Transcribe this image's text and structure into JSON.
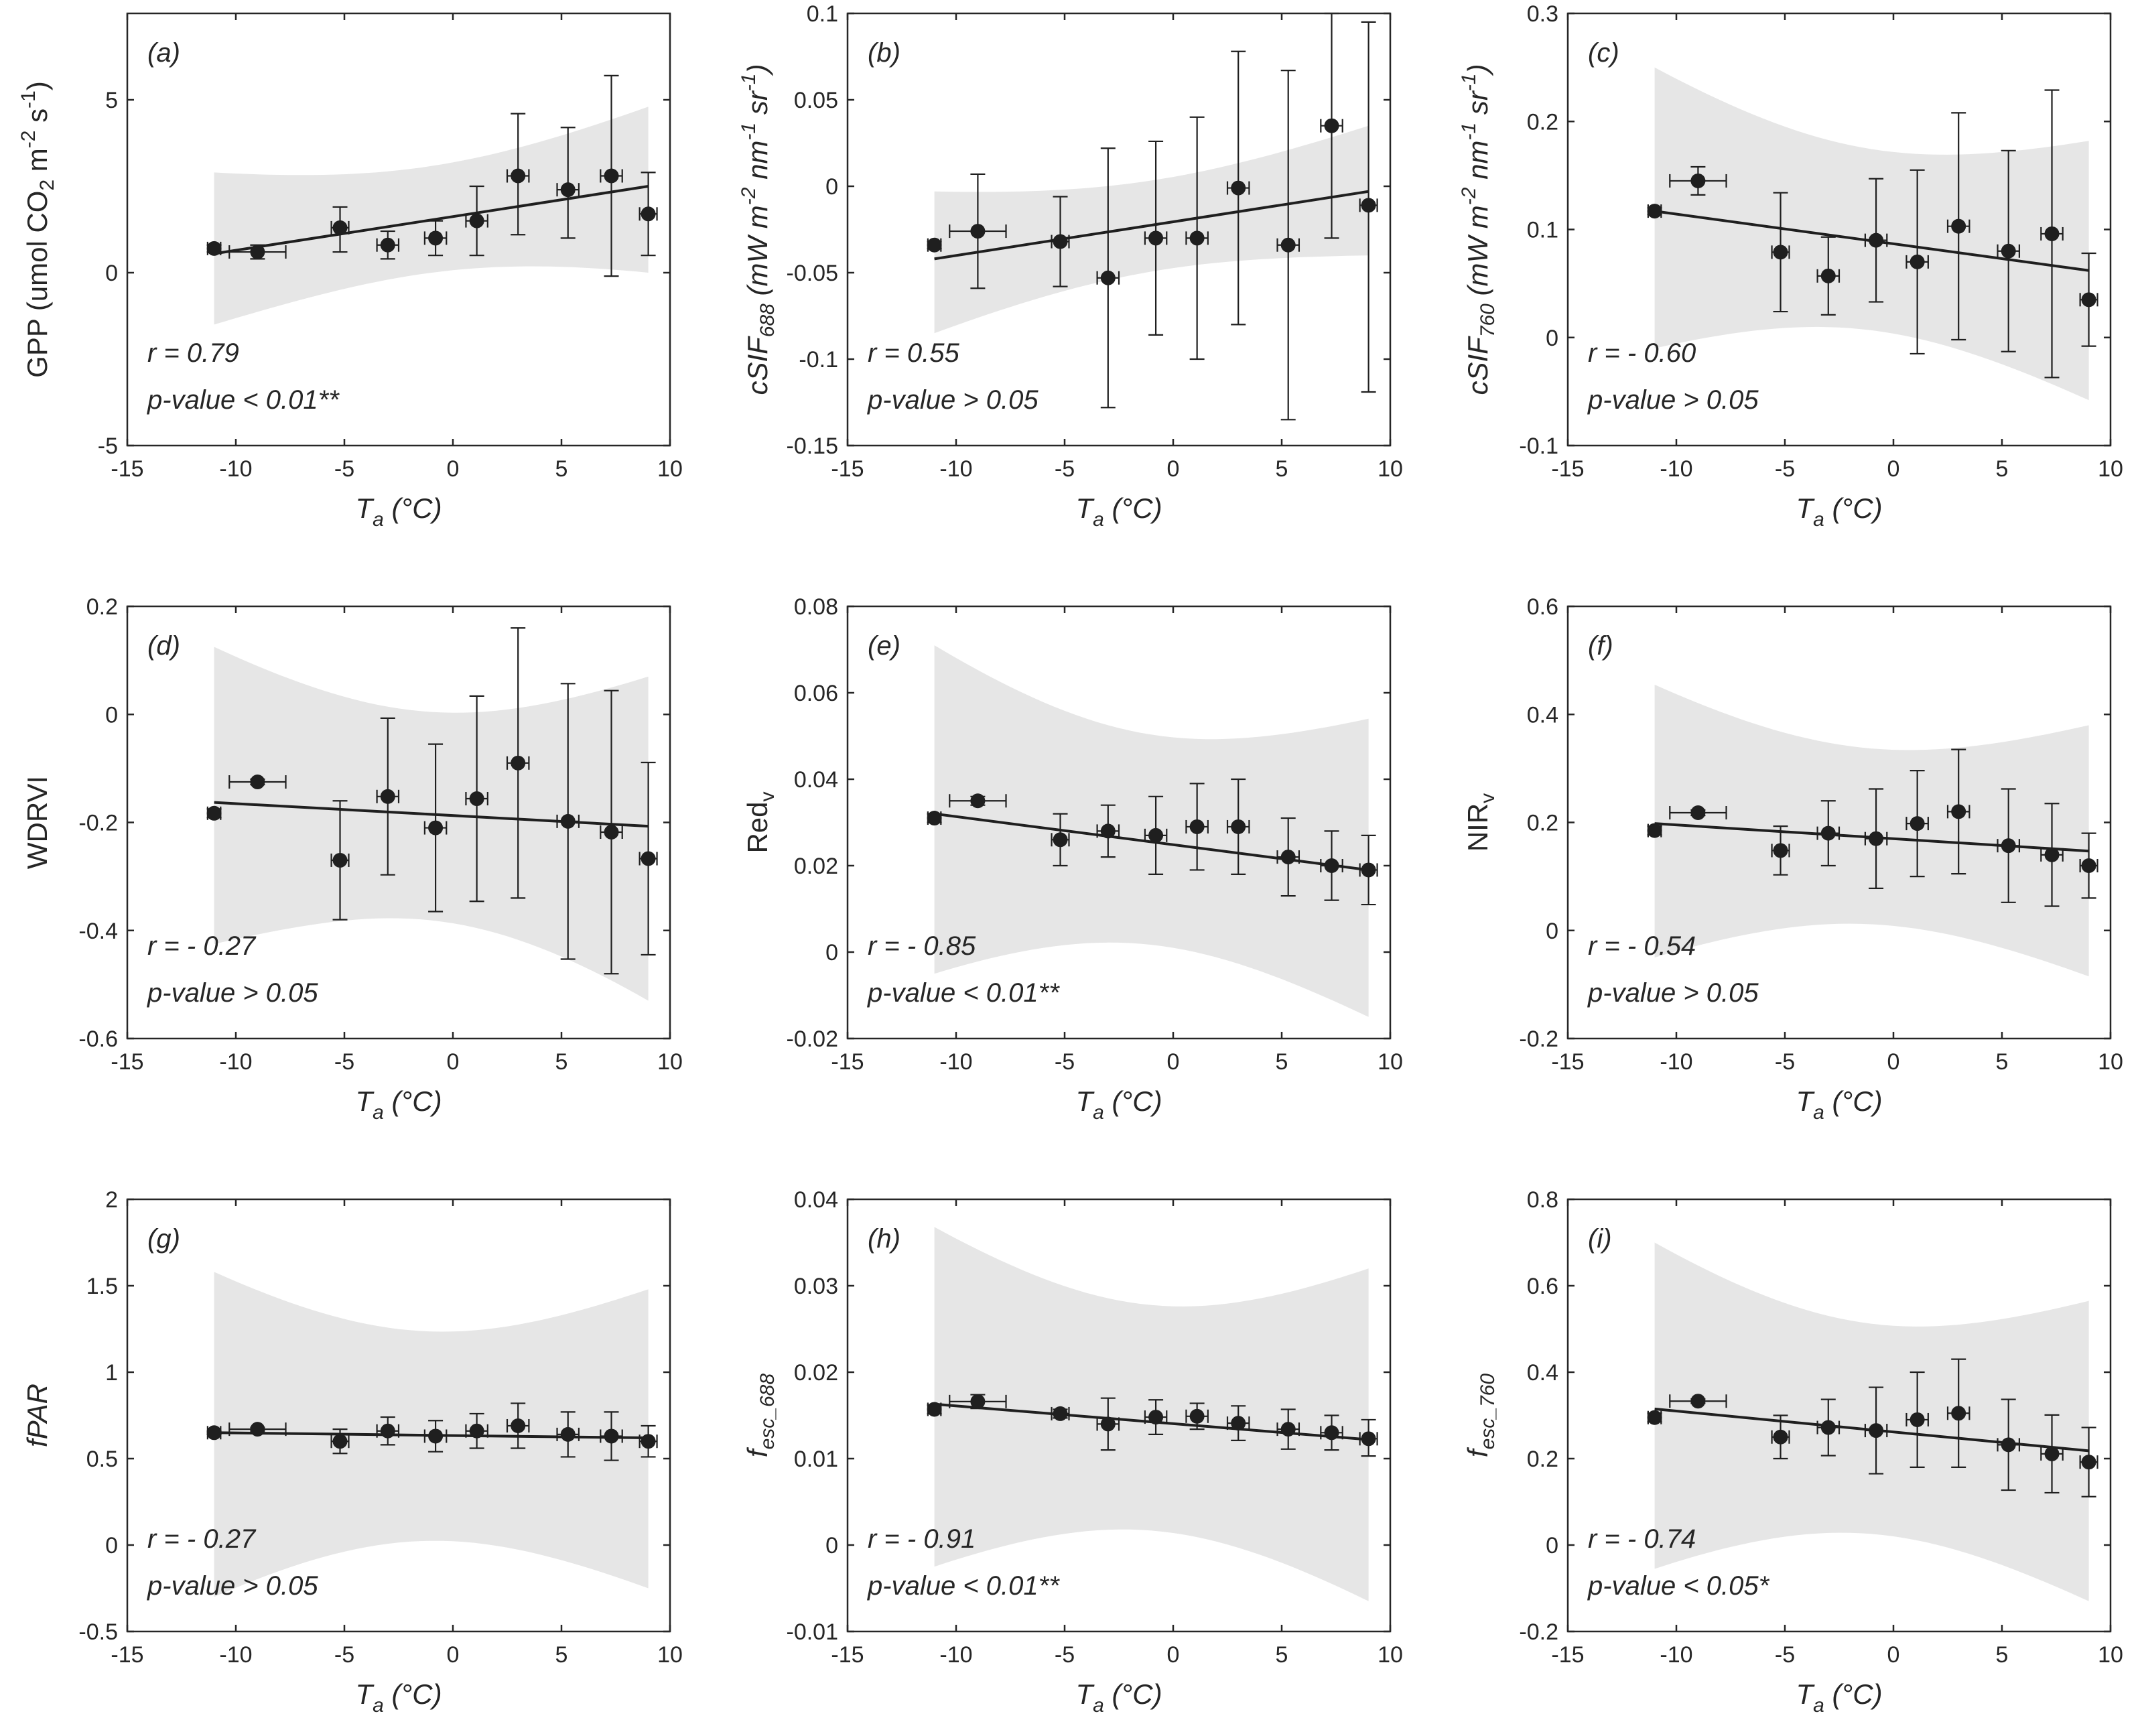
{
  "chart_data": [
    {
      "id": "a",
      "type": "scatter",
      "panel_label": "(a)",
      "ylabel_html": "GPP (umol CO<tspan dy=\"10\" font-size=\"30\">2</tspan><tspan dy=\"-10\"> m</tspan><tspan dy=\"-18\" font-size=\"30\">-2</tspan><tspan dy=\"18\"> s</tspan><tspan dy=\"-18\" font-size=\"30\">-1</tspan><tspan dy=\"18\">)</tspan>",
      "ylabel_italic": false,
      "xlabel": "Ta (°C)",
      "xlim": [
        -15,
        10
      ],
      "xticks": [
        -15,
        -10,
        -5,
        0,
        5,
        10
      ],
      "ylim": [
        -5,
        7.5
      ],
      "yticks": [
        -5,
        0,
        5
      ],
      "ytick_labels": [
        "-5",
        "0",
        "5"
      ],
      "x": [
        -11,
        -9,
        -5.2,
        -3,
        -0.8,
        1.1,
        3,
        5.3,
        7.3,
        9
      ],
      "y": [
        0.7,
        0.6,
        1.3,
        0.8,
        1.0,
        1.5,
        2.8,
        2.4,
        2.8,
        1.7
      ],
      "yerr_lo": [
        0.1,
        0.2,
        0.7,
        0.4,
        0.5,
        1.0,
        1.7,
        1.4,
        2.9,
        1.2
      ],
      "yerr_hi": [
        0.1,
        0.2,
        0.6,
        0.4,
        0.5,
        1.0,
        1.8,
        1.8,
        2.9,
        1.2
      ],
      "xerr": [
        0.3,
        1.3,
        0.4,
        0.5,
        0.5,
        0.5,
        0.5,
        0.5,
        0.5,
        0.4
      ],
      "fit": [
        0.55,
        2.5
      ],
      "band_lo": [
        -1.5,
        0.0
      ],
      "band_hi": [
        2.9,
        4.8
      ],
      "r_text": "r = 0.79",
      "p_text": "p-value < 0.01**"
    },
    {
      "id": "b",
      "type": "scatter",
      "panel_label": "(b)",
      "ylabel_html": "cSIF<tspan dy=\"10\" font-size=\"30\">688</tspan><tspan dy=\"-10\"> (mW m</tspan><tspan dy=\"-18\" font-size=\"30\">-2</tspan><tspan dy=\"18\"> nm</tspan><tspan dy=\"-18\" font-size=\"30\">-1</tspan><tspan dy=\"18\"> sr</tspan><tspan dy=\"-18\" font-size=\"30\">-1</tspan><tspan dy=\"18\">)</tspan>",
      "ylabel_italic": true,
      "xlabel": "Ta (°C)",
      "xlim": [
        -15,
        10
      ],
      "xticks": [
        -15,
        -10,
        -5,
        0,
        5,
        10
      ],
      "ylim": [
        -0.15,
        0.1
      ],
      "yticks": [
        -0.15,
        -0.1,
        -0.05,
        0,
        0.05,
        0.1
      ],
      "ytick_labels": [
        "-0.15",
        "-0.1",
        "-0.05",
        "0",
        "0.05",
        "0.1"
      ],
      "x": [
        -11,
        -9,
        -5.2,
        -3,
        -0.8,
        1.1,
        3,
        5.3,
        7.3,
        9
      ],
      "y": [
        -0.034,
        -0.026,
        -0.032,
        -0.053,
        -0.03,
        -0.03,
        -0.001,
        -0.034,
        0.035,
        -0.011
      ],
      "yerr_lo": [
        0.002,
        0.033,
        0.026,
        0.075,
        0.056,
        0.07,
        0.079,
        0.101,
        0.065,
        0.108
      ],
      "yerr_hi": [
        0.002,
        0.033,
        0.026,
        0.075,
        0.056,
        0.07,
        0.079,
        0.101,
        0.065,
        0.106
      ],
      "xerr": [
        0.3,
        1.3,
        0.4,
        0.5,
        0.5,
        0.5,
        0.5,
        0.5,
        0.5,
        0.4
      ],
      "fit": [
        -0.042,
        -0.003
      ],
      "band_lo": [
        -0.085,
        -0.04
      ],
      "band_hi": [
        -0.003,
        0.035
      ],
      "r_text": "r = 0.55",
      "p_text": "p-value > 0.05"
    },
    {
      "id": "c",
      "type": "scatter",
      "panel_label": "(c)",
      "ylabel_html": "cSIF<tspan dy=\"10\" font-size=\"30\">760</tspan><tspan dy=\"-10\"> (mW m</tspan><tspan dy=\"-18\" font-size=\"30\">-2</tspan><tspan dy=\"18\"> nm</tspan><tspan dy=\"-18\" font-size=\"30\">-1</tspan><tspan dy=\"18\"> sr</tspan><tspan dy=\"-18\" font-size=\"30\">-1</tspan><tspan dy=\"18\">)</tspan>",
      "ylabel_italic": true,
      "xlabel": "Ta (°C)",
      "xlim": [
        -15,
        10
      ],
      "xticks": [
        -15,
        -10,
        -5,
        0,
        5,
        10
      ],
      "ylim": [
        -0.1,
        0.3
      ],
      "yticks": [
        -0.1,
        0,
        0.1,
        0.2,
        0.3
      ],
      "ytick_labels": [
        "-0.1",
        "0",
        "0.1",
        "0.2",
        "0.3"
      ],
      "x": [
        -11,
        -9,
        -5.2,
        -3,
        -0.8,
        1.1,
        3,
        5.3,
        7.3,
        9
      ],
      "y": [
        0.117,
        0.145,
        0.079,
        0.057,
        0.09,
        0.07,
        0.103,
        0.08,
        0.096,
        0.035
      ],
      "yerr_lo": [
        0.003,
        0.013,
        0.055,
        0.036,
        0.057,
        0.085,
        0.105,
        0.093,
        0.133,
        0.043
      ],
      "yerr_hi": [
        0.003,
        0.013,
        0.055,
        0.036,
        0.057,
        0.085,
        0.105,
        0.093,
        0.133,
        0.043
      ],
      "xerr": [
        0.3,
        1.3,
        0.4,
        0.5,
        0.5,
        0.5,
        0.5,
        0.5,
        0.5,
        0.4
      ],
      "fit": [
        0.117,
        0.062
      ],
      "band_lo": [
        -0.01,
        -0.058
      ],
      "band_hi": [
        0.25,
        0.182
      ],
      "r_text": "r = - 0.60",
      "p_text": "p-value > 0.05"
    },
    {
      "id": "d",
      "type": "scatter",
      "panel_label": "(d)",
      "ylabel_html": "WDRVI",
      "ylabel_italic": false,
      "xlabel": "Ta (°C)",
      "xlim": [
        -15,
        10
      ],
      "xticks": [
        -15,
        -10,
        -5,
        0,
        5,
        10
      ],
      "ylim": [
        -0.6,
        0.2
      ],
      "yticks": [
        -0.6,
        -0.4,
        -0.2,
        0,
        0.2
      ],
      "ytick_labels": [
        "-0.6",
        "-0.4",
        "-0.2",
        "0",
        "0.2"
      ],
      "x": [
        -11,
        -9,
        -5.2,
        -3,
        -0.8,
        1.1,
        3,
        5.3,
        7.3,
        9
      ],
      "y": [
        -0.183,
        -0.125,
        -0.27,
        -0.152,
        -0.21,
        -0.156,
        -0.09,
        -0.198,
        -0.218,
        -0.267
      ],
      "yerr_lo": [
        0.008,
        0.005,
        0.11,
        0.145,
        0.155,
        0.19,
        0.25,
        0.255,
        0.262,
        0.178
      ],
      "yerr_hi": [
        0.008,
        0.005,
        0.11,
        0.145,
        0.155,
        0.19,
        0.25,
        0.255,
        0.262,
        0.178
      ],
      "xerr": [
        0.3,
        1.3,
        0.4,
        0.5,
        0.5,
        0.5,
        0.5,
        0.5,
        0.5,
        0.4
      ],
      "fit": [
        -0.163,
        -0.207
      ],
      "band_lo": [
        -0.425,
        -0.53
      ],
      "band_hi": [
        0.125,
        0.07
      ],
      "r_text": "r = - 0.27",
      "p_text": "p-value > 0.05"
    },
    {
      "id": "e",
      "type": "scatter",
      "panel_label": "(e)",
      "ylabel_html": "Red<tspan dy=\"10\" font-size=\"30\">v</tspan>",
      "ylabel_italic": false,
      "xlabel": "Ta (°C)",
      "xlim": [
        -15,
        10
      ],
      "xticks": [
        -15,
        -10,
        -5,
        0,
        5,
        10
      ],
      "ylim": [
        -0.02,
        0.08
      ],
      "yticks": [
        -0.02,
        0,
        0.02,
        0.04,
        0.06,
        0.08
      ],
      "ytick_labels": [
        "-0.02",
        "0",
        "0.02",
        "0.04",
        "0.06",
        "0.08"
      ],
      "x": [
        -11,
        -9,
        -5.2,
        -3,
        -0.8,
        1.1,
        3,
        5.3,
        7.3,
        9
      ],
      "y": [
        0.031,
        0.035,
        0.026,
        0.028,
        0.027,
        0.029,
        0.029,
        0.022,
        0.02,
        0.019
      ],
      "yerr_lo": [
        0.001,
        0.001,
        0.006,
        0.006,
        0.009,
        0.01,
        0.011,
        0.009,
        0.008,
        0.008
      ],
      "yerr_hi": [
        0.001,
        0.001,
        0.006,
        0.006,
        0.009,
        0.01,
        0.011,
        0.009,
        0.008,
        0.008
      ],
      "xerr": [
        0.3,
        1.3,
        0.4,
        0.5,
        0.5,
        0.5,
        0.5,
        0.5,
        0.5,
        0.4
      ],
      "fit": [
        0.032,
        0.019
      ],
      "band_lo": [
        -0.005,
        -0.015
      ],
      "band_hi": [
        0.071,
        0.054
      ],
      "r_text": "r = - 0.85",
      "p_text": "p-value < 0.01**"
    },
    {
      "id": "f",
      "type": "scatter",
      "panel_label": "(f)",
      "ylabel_html": "NIR<tspan dy=\"10\" font-size=\"30\">v</tspan>",
      "ylabel_italic": false,
      "xlabel": "Ta (°C)",
      "xlim": [
        -15,
        10
      ],
      "xticks": [
        -15,
        -10,
        -5,
        0,
        5,
        10
      ],
      "ylim": [
        -0.2,
        0.6
      ],
      "yticks": [
        -0.2,
        0,
        0.2,
        0.4,
        0.6
      ],
      "ytick_labels": [
        "-0.2",
        "0",
        "0.2",
        "0.4",
        "0.6"
      ],
      "x": [
        -11,
        -9,
        -5.2,
        -3,
        -0.8,
        1.1,
        3,
        5.3,
        7.3,
        9
      ],
      "y": [
        0.185,
        0.218,
        0.148,
        0.18,
        0.17,
        0.198,
        0.22,
        0.157,
        0.14,
        0.12
      ],
      "yerr_lo": [
        0.008,
        0.005,
        0.045,
        0.06,
        0.092,
        0.098,
        0.115,
        0.105,
        0.095,
        0.06
      ],
      "yerr_hi": [
        0.008,
        0.005,
        0.045,
        0.06,
        0.092,
        0.098,
        0.115,
        0.105,
        0.095,
        0.06
      ],
      "xerr": [
        0.3,
        1.3,
        0.4,
        0.5,
        0.5,
        0.5,
        0.5,
        0.5,
        0.5,
        0.4
      ],
      "fit": [
        0.198,
        0.147
      ],
      "band_lo": [
        -0.05,
        -0.085
      ],
      "band_hi": [
        0.455,
        0.38
      ],
      "r_text": "r = - 0.54",
      "p_text": "p-value > 0.05"
    },
    {
      "id": "g",
      "type": "scatter",
      "panel_label": "(g)",
      "ylabel_html": "fPAR",
      "ylabel_italic": true,
      "xlabel": "Ta (°C)",
      "xlim": [
        -15,
        10
      ],
      "xticks": [
        -15,
        -10,
        -5,
        0,
        5,
        10
      ],
      "ylim": [
        -0.5,
        2
      ],
      "yticks": [
        -0.5,
        0,
        0.5,
        1,
        1.5,
        2
      ],
      "ytick_labels": [
        "-0.5",
        "0",
        "0.5",
        "1",
        "1.5",
        "2"
      ],
      "x": [
        -11,
        -9,
        -5.2,
        -3,
        -0.8,
        1.1,
        3,
        5.3,
        7.3,
        9
      ],
      "y": [
        0.65,
        0.67,
        0.6,
        0.66,
        0.63,
        0.66,
        0.69,
        0.64,
        0.63,
        0.6
      ],
      "yerr_lo": [
        0.01,
        0.01,
        0.07,
        0.08,
        0.09,
        0.1,
        0.13,
        0.13,
        0.14,
        0.09
      ],
      "yerr_hi": [
        0.01,
        0.01,
        0.07,
        0.08,
        0.09,
        0.1,
        0.13,
        0.13,
        0.14,
        0.09
      ],
      "xerr": [
        0.3,
        1.3,
        0.4,
        0.5,
        0.5,
        0.5,
        0.5,
        0.5,
        0.5,
        0.4
      ],
      "fit": [
        0.65,
        0.62
      ],
      "band_lo": [
        -0.3,
        -0.25
      ],
      "band_hi": [
        1.58,
        1.48
      ],
      "r_text": "r = - 0.27",
      "p_text": "p-value > 0.05"
    },
    {
      "id": "h",
      "type": "scatter",
      "panel_label": "(h)",
      "ylabel_html": "f<tspan dy=\"10\" font-size=\"30\">esc_688</tspan>",
      "ylabel_italic": true,
      "xlabel": "Ta (°C)",
      "xlim": [
        -15,
        10
      ],
      "xticks": [
        -15,
        -10,
        -5,
        0,
        5,
        10
      ],
      "ylim": [
        -0.01,
        0.04
      ],
      "yticks": [
        -0.01,
        0,
        0.01,
        0.02,
        0.03,
        0.04
      ],
      "ytick_labels": [
        "-0.01",
        "0",
        "0.01",
        "0.02",
        "0.03",
        "0.04"
      ],
      "x": [
        -11,
        -9,
        -5.2,
        -3,
        -0.8,
        1.1,
        3,
        5.3,
        7.3,
        9
      ],
      "y": [
        0.0157,
        0.0166,
        0.0152,
        0.014,
        0.0148,
        0.0149,
        0.0141,
        0.0134,
        0.013,
        0.0123
      ],
      "yerr_lo": [
        0.0005,
        0.0008,
        0.0005,
        0.003,
        0.002,
        0.0015,
        0.002,
        0.0023,
        0.002,
        0.002
      ],
      "yerr_hi": [
        0.0005,
        0.0008,
        0.0005,
        0.003,
        0.002,
        0.0015,
        0.002,
        0.0023,
        0.002,
        0.0022
      ],
      "xerr": [
        0.3,
        1.3,
        0.4,
        0.5,
        0.5,
        0.5,
        0.5,
        0.5,
        0.5,
        0.4
      ],
      "fit": [
        0.0163,
        0.0122
      ],
      "band_lo": [
        -0.0025,
        -0.0065
      ],
      "band_hi": [
        0.0368,
        0.032
      ],
      "r_text": "r = - 0.91",
      "p_text": "p-value < 0.01**"
    },
    {
      "id": "i",
      "type": "scatter",
      "panel_label": "(i)",
      "ylabel_html": "f<tspan dy=\"10\" font-size=\"30\">esc_760</tspan>",
      "ylabel_italic": true,
      "xlabel": "Ta (°C)",
      "xlim": [
        -15,
        10
      ],
      "xticks": [
        -15,
        -10,
        -5,
        0,
        5,
        10
      ],
      "ylim": [
        -0.2,
        0.8
      ],
      "yticks": [
        -0.2,
        0,
        0.2,
        0.4,
        0.6,
        0.8
      ],
      "ytick_labels": [
        "-0.2",
        "0",
        "0.2",
        "0.4",
        "0.6",
        "0.8"
      ],
      "x": [
        -11,
        -9,
        -5.2,
        -3,
        -0.8,
        1.1,
        3,
        5.3,
        7.3,
        9
      ],
      "y": [
        0.295,
        0.333,
        0.25,
        0.272,
        0.265,
        0.29,
        0.305,
        0.232,
        0.211,
        0.192
      ],
      "yerr_lo": [
        0.01,
        0.005,
        0.05,
        0.065,
        0.1,
        0.11,
        0.125,
        0.105,
        0.09,
        0.08
      ],
      "yerr_hi": [
        0.01,
        0.005,
        0.05,
        0.065,
        0.1,
        0.11,
        0.125,
        0.105,
        0.09,
        0.08
      ],
      "xerr": [
        0.3,
        1.3,
        0.4,
        0.5,
        0.5,
        0.5,
        0.5,
        0.5,
        0.5,
        0.4
      ],
      "fit": [
        0.315,
        0.218
      ],
      "band_lo": [
        -0.055,
        -0.13
      ],
      "band_hi": [
        0.7,
        0.565
      ],
      "r_text": "r = - 0.74",
      "p_text": "p-value < 0.05*"
    }
  ]
}
